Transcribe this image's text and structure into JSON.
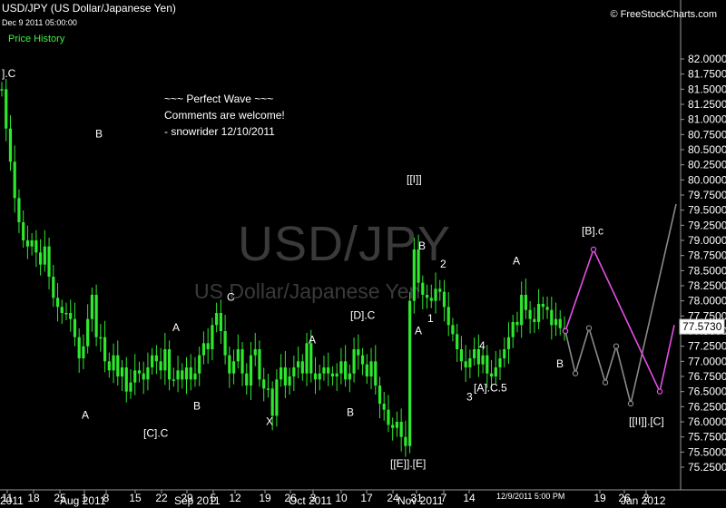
{
  "header": {
    "title": "USD/JPY (US Dollar/Japanese Yen)",
    "datetime": "Dec 9 2011 05:00:00",
    "tab": "Price History",
    "brand": "© FreeStockCharts.com"
  },
  "watermark": {
    "symbol": "USD/JPY",
    "name": "US Dollar/Japanese Yen"
  },
  "note": [
    "~~~ Perfect Wave ~~~",
    "Comments are welcome!",
    "- snowrider  12/10/2011"
  ],
  "colors": {
    "up": "#2ee82e",
    "down": "#2ee82e",
    "wick": "#2ee82e",
    "projection_main": "#e64fe6",
    "projection_alt": "#8a8a8a",
    "background": "#000000"
  },
  "chart_data": {
    "type": "candlestick",
    "ylim": [
      75.0,
      82.25
    ],
    "yticks": [
      "82.0000",
      "81.7500",
      "81.5000",
      "81.2500",
      "81.0000",
      "80.7500",
      "80.5000",
      "80.2500",
      "80.0000",
      "79.7500",
      "79.5000",
      "79.2500",
      "79.0000",
      "78.7500",
      "78.5000",
      "78.2500",
      "78.0000",
      "77.7500",
      "77.5000",
      "77.2500",
      "77.0000",
      "76.7500",
      "76.5000",
      "76.2500",
      "76.0000",
      "75.7500",
      "75.5000",
      "75.2500"
    ],
    "xticks": [
      "11",
      "18",
      "25",
      "1",
      "8",
      "15",
      "22",
      "29",
      "5",
      "12",
      "19",
      "26",
      "3",
      "10",
      "17",
      "24",
      "31",
      "7",
      "14",
      "19",
      "26",
      "2"
    ],
    "month_labels": [
      "2011",
      "Aug 2011",
      "Sep 2011",
      "Oct 2011",
      "Nov 2011",
      "Jan 2012"
    ],
    "cursor_label": "12/9/2011 5:00 PM",
    "last_price": "77.5730",
    "price_series": [
      81.5,
      80.85,
      80.3,
      79.7,
      79.3,
      79.0,
      78.9,
      79.0,
      78.8,
      78.6,
      78.9,
      78.4,
      78.05,
      77.9,
      77.8,
      77.8,
      77.7,
      77.4,
      77.05,
      77.25,
      77.7,
      78.1,
      77.4,
      77.4,
      77.0,
      76.85,
      77.1,
      76.75,
      76.9,
      76.5,
      76.65,
      76.85,
      76.8,
      76.7,
      76.9,
      77.1,
      77.0,
      76.85,
      77.2,
      76.7,
      76.7,
      76.85,
      76.7,
      76.9,
      76.7,
      76.8,
      77.1,
      77.3,
      77.2,
      77.6,
      77.8,
      77.5,
      77.1,
      76.8,
      77.0,
      77.2,
      76.8,
      76.6,
      77.1,
      77.2,
      76.7,
      76.55,
      76.55,
      76.1,
      76.7,
      76.9,
      76.6,
      76.75,
      76.9,
      77.0,
      76.8,
      77.3,
      76.8,
      76.7,
      76.8,
      76.9,
      76.8,
      76.75,
      76.8,
      77.0,
      76.7,
      76.8,
      77.2,
      77.1,
      76.95,
      76.75,
      77.0,
      76.6,
      76.3,
      76.2,
      75.95,
      75.9,
      76.0,
      75.75,
      75.6,
      78.0,
      78.85,
      78.3,
      78.1,
      78.05,
      78.0,
      78.2,
      78.15,
      77.9,
      77.6,
      77.45,
      77.2,
      77.0,
      76.9,
      77.05,
      77.2,
      76.95,
      77.1,
      76.8,
      76.75,
      76.9,
      77.05,
      77.2,
      77.4,
      77.65,
      77.6,
      78.1,
      77.85,
      77.7,
      77.65,
      77.95,
      77.9,
      77.85,
      77.6,
      77.7,
      77.55,
      77.55
    ],
    "projection_main": [
      [
        623,
        77.5
      ],
      [
        654,
        78.85
      ],
      [
        727,
        76.5
      ],
      [
        743,
        77.6
      ]
    ],
    "projection_alt": [
      [
        623,
        77.5
      ],
      [
        634,
        76.8
      ],
      [
        649,
        77.55
      ],
      [
        667,
        76.65
      ],
      [
        679,
        77.25
      ],
      [
        695,
        76.3
      ],
      [
        745,
        79.6
      ]
    ],
    "wave_labels": [
      {
        "text": "].C",
        "x": 2,
        "y": 81.7
      },
      {
        "text": "B",
        "x": 105,
        "y": 80.7
      },
      {
        "text": "A",
        "x": 90,
        "y": 76.05
      },
      {
        "text": "A",
        "x": 190,
        "y": 77.5
      },
      {
        "text": "B",
        "x": 213,
        "y": 76.2
      },
      {
        "text": "[C].C",
        "x": 158,
        "y": 75.75
      },
      {
        "text": "C",
        "x": 250,
        "y": 78.0
      },
      {
        "text": "X",
        "x": 293,
        "y": 75.95
      },
      {
        "text": "A",
        "x": 340,
        "y": 77.3
      },
      {
        "text": "[D].C",
        "x": 386,
        "y": 77.7
      },
      {
        "text": "B",
        "x": 382,
        "y": 76.1
      },
      {
        "text": "[[I]]",
        "x": 448,
        "y": 79.95
      },
      {
        "text": "B",
        "x": 461,
        "y": 78.85
      },
      {
        "text": "2",
        "x": 485,
        "y": 78.55
      },
      {
        "text": "1",
        "x": 471,
        "y": 77.65
      },
      {
        "text": "A",
        "x": 457,
        "y": 77.45
      },
      {
        "text": "4",
        "x": 528,
        "y": 77.2
      },
      {
        "text": "3",
        "x": 514,
        "y": 76.35
      },
      {
        "text": "[A].C.5",
        "x": 522,
        "y": 76.5
      },
      {
        "text": "A",
        "x": 565,
        "y": 78.6
      },
      {
        "text": "B",
        "x": 613,
        "y": 76.9
      },
      {
        "text": "[B].c",
        "x": 641,
        "y": 79.1
      },
      {
        "text": "[[E]].[E]",
        "x": 430,
        "y": 75.25
      },
      {
        "text": "[[II]].[C]",
        "x": 693,
        "y": 75.95
      }
    ]
  }
}
